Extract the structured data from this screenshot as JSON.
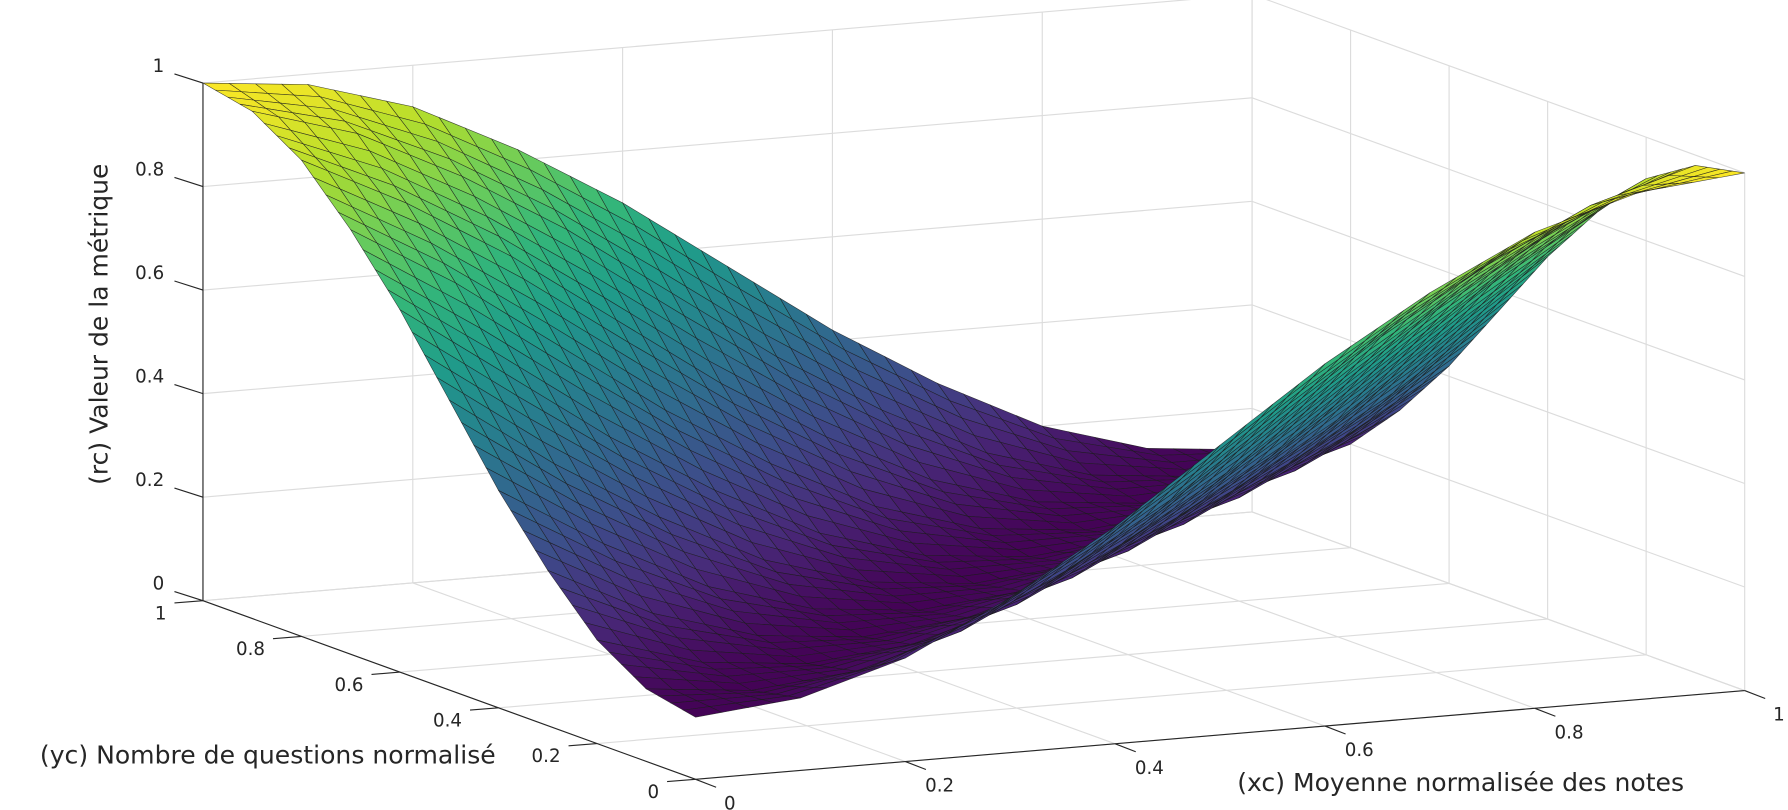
{
  "chart_data": {
    "type": "surface",
    "xlabel": "(xc) Moyenne normalisée des notes",
    "ylabel": "(yc) Nombre de questions normalisé",
    "zlabel": "(rc) Valeur de la métrique",
    "x": [
      0,
      0.1,
      0.2,
      0.3,
      0.4,
      0.5,
      0.6,
      0.7,
      0.8,
      0.9,
      1
    ],
    "y": [
      0,
      0.1,
      0.2,
      0.3,
      0.4,
      0.5,
      0.6,
      0.7,
      0.8,
      0.9,
      1
    ],
    "z": [
      [
        0.12,
        0.14,
        0.2,
        0.3,
        0.42,
        0.56,
        0.7,
        0.82,
        0.92,
        0.98,
        1
      ],
      [
        0.14,
        0.12,
        0.14,
        0.2,
        0.3,
        0.42,
        0.56,
        0.7,
        0.82,
        0.92,
        0.98
      ],
      [
        0.2,
        0.14,
        0.12,
        0.14,
        0.2,
        0.3,
        0.42,
        0.56,
        0.7,
        0.82,
        0.92
      ],
      [
        0.3,
        0.2,
        0.14,
        0.12,
        0.14,
        0.2,
        0.3,
        0.42,
        0.56,
        0.7,
        0.82
      ],
      [
        0.42,
        0.3,
        0.2,
        0.14,
        0.12,
        0.14,
        0.2,
        0.3,
        0.42,
        0.56,
        0.7
      ],
      [
        0.56,
        0.42,
        0.3,
        0.2,
        0.14,
        0.12,
        0.14,
        0.2,
        0.3,
        0.42,
        0.56
      ],
      [
        0.7,
        0.56,
        0.42,
        0.3,
        0.2,
        0.14,
        0.12,
        0.14,
        0.2,
        0.3,
        0.42
      ],
      [
        0.82,
        0.7,
        0.56,
        0.42,
        0.3,
        0.2,
        0.14,
        0.12,
        0.14,
        0.2,
        0.3
      ],
      [
        0.92,
        0.82,
        0.7,
        0.56,
        0.42,
        0.3,
        0.2,
        0.14,
        0.12,
        0.14,
        0.2
      ],
      [
        0.98,
        0.92,
        0.82,
        0.7,
        0.56,
        0.42,
        0.3,
        0.2,
        0.14,
        0.12,
        0.14
      ],
      [
        1,
        0.98,
        0.92,
        0.82,
        0.7,
        0.56,
        0.42,
        0.3,
        0.2,
        0.14,
        0.12
      ]
    ],
    "xlim": [
      0,
      1
    ],
    "ylim": [
      0,
      1
    ],
    "zlim": [
      0,
      1
    ],
    "xticks": [
      0,
      0.2,
      0.4,
      0.6,
      0.8,
      1
    ],
    "yticks": [
      0,
      0.2,
      0.4,
      0.6,
      0.8,
      1
    ],
    "zticks": [
      0,
      0.2,
      0.4,
      0.6,
      0.8,
      1
    ],
    "grid": true,
    "colormap": "viridis"
  }
}
